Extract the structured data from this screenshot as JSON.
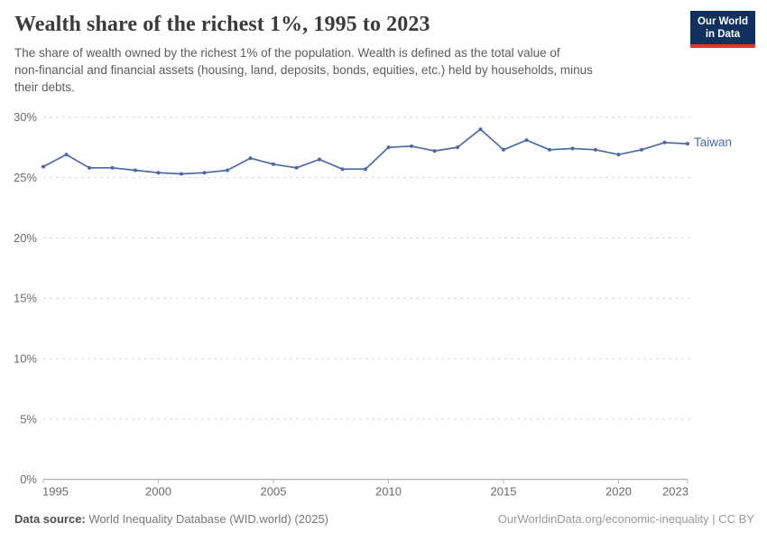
{
  "header": {
    "title": "Wealth share of the richest 1%, 1995 to 2023",
    "subtitle_lines": [
      "The share of wealth owned by the richest 1% of the population. Wealth is defined as the total value of",
      "non-financial and financial assets (housing, land, deposits, bonds, equities, etc.) held by households, minus",
      "their debts."
    ],
    "logo": {
      "line1": "Our World",
      "line2": "in Data",
      "bg_color": "#12305e",
      "accent_color": "#e0362c"
    }
  },
  "chart_data": {
    "type": "line",
    "title": "Wealth share of the richest 1%, 1995 to 2023",
    "xlabel": "",
    "ylabel": "",
    "xlim": [
      1995,
      2023
    ],
    "ylim": [
      0,
      30
    ],
    "grid": "horizontal-dashed",
    "legend_position": "end-of-line",
    "x_ticks": [
      1995,
      2000,
      2005,
      2010,
      2015,
      2020,
      2023
    ],
    "y_tick_values": [
      0,
      5,
      10,
      15,
      20,
      25,
      30
    ],
    "y_tick_labels": [
      "0%",
      "5%",
      "10%",
      "15%",
      "20%",
      "25%",
      "30%"
    ],
    "series": [
      {
        "name": "Taiwan",
        "color": "#4b6aa4",
        "x": [
          1995,
          1996,
          1997,
          1998,
          1999,
          2000,
          2001,
          2002,
          2003,
          2004,
          2005,
          2006,
          2007,
          2008,
          2009,
          2010,
          2011,
          2012,
          2013,
          2014,
          2015,
          2016,
          2017,
          2018,
          2019,
          2020,
          2021,
          2022,
          2023
        ],
        "values": [
          25.9,
          26.9,
          25.8,
          25.8,
          25.6,
          25.4,
          25.3,
          25.4,
          25.6,
          26.6,
          26.1,
          25.8,
          26.5,
          25.7,
          25.7,
          27.5,
          27.6,
          27.2,
          27.5,
          29.0,
          27.3,
          28.1,
          27.3,
          27.4,
          27.3,
          26.9,
          27.3,
          27.9,
          27.8
        ]
      }
    ],
    "colors": {
      "grid": "#d6d6d6",
      "axis": "#9e9e9e",
      "tick": "#b5b5b5",
      "tick_label": "#6b6b6b"
    }
  },
  "footer": {
    "source_label": "Data source:",
    "source_text": " World Inequality Database (WID.world) (2025)",
    "note_right": "OurWorldinData.org/economic-inequality | CC BY"
  }
}
